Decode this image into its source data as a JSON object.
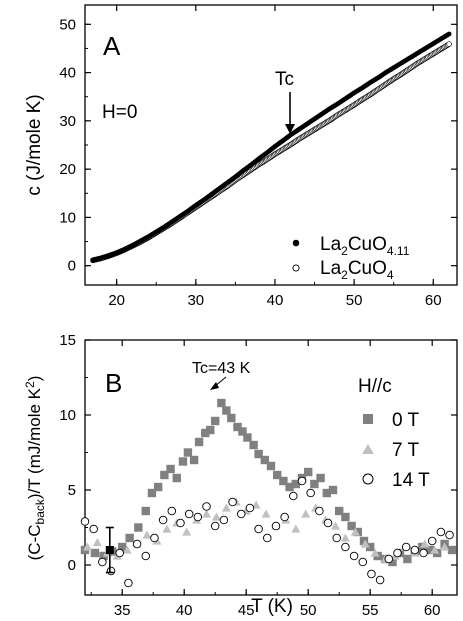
{
  "chart_data": [
    {
      "type": "scatter",
      "panel_label": "A",
      "field_label": "H=0",
      "ylabel": "c (J/mole K)",
      "xlim": [
        16,
        63
      ],
      "ylim": [
        -4,
        54
      ],
      "x_ticks": [
        20,
        30,
        40,
        50,
        60
      ],
      "y_ticks": [
        0,
        10,
        20,
        30,
        40,
        50
      ],
      "annotation": {
        "text": "Tc",
        "x": 42,
        "y": 26
      },
      "series": [
        {
          "name": "La2CuO4.11",
          "name_parts": {
            "a": "La",
            "b": "2",
            "c": "CuO",
            "d": "4.11"
          },
          "marker": "filled-circle",
          "x": [
            17,
            18,
            19,
            20,
            21,
            22,
            23,
            24,
            25,
            26,
            27,
            28,
            29,
            30,
            31,
            32,
            33,
            34,
            35,
            36,
            37,
            38,
            39,
            40,
            41,
            42,
            43,
            44,
            45,
            46,
            47,
            48,
            49,
            50,
            51,
            52,
            53,
            54,
            55,
            56,
            57,
            58,
            59,
            60,
            61,
            62
          ],
          "y": [
            1.2,
            1.6,
            2.1,
            2.7,
            3.4,
            4.2,
            5.1,
            6.0,
            7.0,
            8.0,
            9.1,
            10.2,
            11.3,
            12.5,
            13.6,
            14.8,
            16.0,
            17.2,
            18.4,
            19.7,
            20.9,
            22.2,
            23.4,
            24.7,
            25.9,
            27.1,
            28.2,
            29.3,
            30.4,
            31.5,
            32.6,
            33.6,
            34.7,
            35.8,
            36.8,
            37.9,
            38.9,
            40.0,
            41.0,
            42.0,
            43.0,
            44.0,
            45.0,
            46.0,
            47.0,
            48.0
          ]
        },
        {
          "name": "La2CuO4",
          "name_parts": {
            "a": "La",
            "b": "2",
            "c": "CuO",
            "d": "4"
          },
          "marker": "open-circle",
          "x": [
            17,
            18,
            19,
            20,
            21,
            22,
            23,
            24,
            25,
            26,
            27,
            28,
            29,
            30,
            31,
            32,
            33,
            34,
            35,
            36,
            37,
            38,
            39,
            40,
            41,
            42,
            43,
            44,
            45,
            46,
            47,
            48,
            49,
            50,
            51,
            52,
            53,
            54,
            55,
            56,
            57,
            58,
            59,
            60,
            61,
            62
          ],
          "y": [
            1.1,
            1.5,
            2.0,
            2.6,
            3.3,
            4.1,
            4.9,
            5.8,
            6.8,
            7.8,
            8.8,
            9.9,
            11.0,
            12.1,
            13.2,
            14.3,
            15.4,
            16.5,
            17.7,
            18.8,
            19.9,
            21.0,
            22.0,
            23.1,
            24.1,
            25.1,
            26.2,
            27.2,
            28.2,
            29.2,
            30.2,
            31.3,
            32.3,
            33.3,
            34.4,
            35.4,
            36.5,
            37.6,
            38.7,
            39.7,
            40.8,
            41.9,
            42.9,
            43.9,
            44.9,
            45.9
          ]
        }
      ]
    },
    {
      "type": "scatter",
      "panel_label": "B",
      "field_label": "H//c",
      "ylabel_parts": {
        "a": "(C-C",
        "b": "back",
        "c": ")/T (mJ/mole K",
        "d": "2",
        "e": ")"
      },
      "xlabel": "T (K)",
      "xlim": [
        32,
        62
      ],
      "ylim": [
        -2,
        15
      ],
      "x_ticks": [
        35,
        40,
        45,
        50,
        55,
        60
      ],
      "y_ticks": [
        0,
        5,
        10,
        15
      ],
      "annotation": {
        "text": "Tc=43 K",
        "x": 43.5,
        "y": 11.2
      },
      "error_bar": {
        "x": 34,
        "y": 1.0,
        "yerr": 1.5
      },
      "series": [
        {
          "name": "0 T",
          "marker": "filled-square",
          "x": [
            32.0,
            32.8,
            33.5,
            34.2,
            35.0,
            35.6,
            36.3,
            36.9,
            37.4,
            37.9,
            38.4,
            38.9,
            39.4,
            39.9,
            40.3,
            40.8,
            41.2,
            41.7,
            42.1,
            42.5,
            43.0,
            43.4,
            43.8,
            44.3,
            44.7,
            45.1,
            45.6,
            46.0,
            46.5,
            47.0,
            47.5,
            48.0,
            48.5,
            49.0,
            49.5,
            50.0,
            50.5,
            51.0,
            51.5,
            52.0,
            52.5,
            53.0,
            53.5,
            54.0,
            54.5,
            55.0,
            55.6,
            56.2,
            56.8,
            57.4,
            58.0,
            58.6,
            59.2,
            59.8,
            60.4,
            61.0,
            61.6
          ],
          "y": [
            1.0,
            0.8,
            0.6,
            0.9,
            1.2,
            1.8,
            2.5,
            3.6,
            4.8,
            5.2,
            6.0,
            6.4,
            5.8,
            6.9,
            7.5,
            7.0,
            8.2,
            8.8,
            9.0,
            9.6,
            10.8,
            10.3,
            9.8,
            9.2,
            8.9,
            8.5,
            8.0,
            7.4,
            7.0,
            6.6,
            6.0,
            5.6,
            5.2,
            5.4,
            5.8,
            6.2,
            5.4,
            5.8,
            4.8,
            5.0,
            3.6,
            3.2,
            2.6,
            2.2,
            1.6,
            1.2,
            0.6,
            0.4,
            0.2,
            0.8,
            0.4,
            0.9,
            1.2,
            1.0,
            0.8,
            1.4,
            1.0
          ]
        },
        {
          "name": "7 T",
          "marker": "filled-triangle",
          "x": [
            32.2,
            33.0,
            33.8,
            34.6,
            35.4,
            36.2,
            37.0,
            37.8,
            38.6,
            39.4,
            40.2,
            41.0,
            41.8,
            42.6,
            43.4,
            44.2,
            45.0,
            45.8,
            46.6,
            47.4,
            48.2,
            49.0,
            49.8,
            50.6,
            51.4,
            52.2,
            53.0,
            53.8,
            54.6,
            55.4,
            56.2,
            57.0,
            57.8,
            58.6,
            59.4,
            60.2,
            61.0
          ],
          "y": [
            1.2,
            1.5,
            0.8,
            0.6,
            1.0,
            1.4,
            2.0,
            1.6,
            2.4,
            2.8,
            2.2,
            3.0,
            3.4,
            3.2,
            3.8,
            4.2,
            3.6,
            4.0,
            3.4,
            2.6,
            3.0,
            2.4,
            3.4,
            3.8,
            3.0,
            2.6,
            1.8,
            2.2,
            1.4,
            0.8,
            0.4,
            0.6,
            1.2,
            0.8,
            1.4,
            1.0,
            1.2
          ]
        },
        {
          "name": "14 T",
          "marker": "open-circle",
          "x": [
            32.0,
            32.7,
            33.4,
            34.1,
            34.8,
            35.5,
            36.2,
            36.9,
            37.6,
            38.3,
            39.0,
            39.7,
            40.4,
            41.1,
            41.8,
            42.5,
            43.2,
            43.9,
            44.6,
            45.3,
            46.0,
            46.7,
            47.4,
            48.1,
            48.8,
            49.5,
            50.2,
            50.9,
            51.6,
            52.3,
            53.0,
            53.7,
            54.4,
            55.1,
            55.8,
            56.5,
            57.2,
            57.9,
            58.6,
            59.3,
            60.0,
            60.7,
            61.4
          ],
          "y": [
            2.9,
            2.4,
            0.2,
            -0.4,
            0.8,
            -1.2,
            1.4,
            0.6,
            1.8,
            3.0,
            3.6,
            2.8,
            3.4,
            3.2,
            3.9,
            2.6,
            3.0,
            4.2,
            3.4,
            3.8,
            2.4,
            1.8,
            2.6,
            3.2,
            4.6,
            5.6,
            4.8,
            3.6,
            2.8,
            1.8,
            1.2,
            0.6,
            0.2,
            -0.6,
            -1.0,
            0.4,
            0.8,
            1.2,
            1.0,
            0.8,
            1.6,
            2.2,
            2.0
          ]
        }
      ]
    }
  ]
}
